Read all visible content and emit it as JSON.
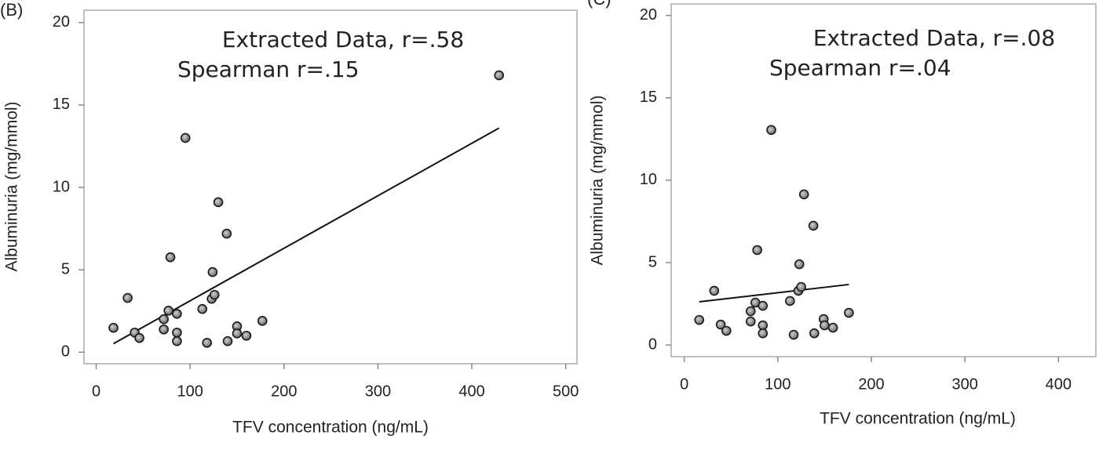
{
  "chart_data": [
    {
      "type": "scatter",
      "panel": "(B)",
      "annotations": [
        "Extracted Data, r=.58",
        "Spearman r=.15"
      ],
      "xlabel": "TFV concentration (ng/mL)",
      "ylabel": "Albuminuria (mg/mmol)",
      "xlim": [
        -13,
        512
      ],
      "ylim": [
        -0.7,
        20.75
      ],
      "xticks": [
        0,
        100,
        200,
        300,
        400,
        500
      ],
      "yticks": [
        0,
        5,
        10,
        15,
        20
      ],
      "x": [
        18.4,
        33.5,
        41,
        46,
        72,
        72,
        77,
        79,
        86,
        86,
        86,
        95,
        113,
        118,
        123,
        124,
        126,
        130,
        139,
        140,
        150,
        150,
        160,
        177,
        429
      ],
      "y": [
        1.48,
        3.29,
        1.19,
        0.86,
        2.0,
        1.38,
        2.52,
        5.76,
        1.19,
        2.33,
        0.67,
        13.0,
        2.62,
        0.57,
        3.24,
        4.86,
        3.48,
        9.1,
        7.19,
        0.67,
        1.57,
        1.14,
        1.0,
        1.9,
        16.8
      ],
      "fit_line": {
        "x": [
          18.4,
          429
        ],
        "y": [
          0.52,
          13.6
        ]
      }
    },
    {
      "type": "scatter",
      "panel": "(C)",
      "annotations": [
        "Extracted Data, r=.08",
        "Spearman r=.04"
      ],
      "xlabel": "TFV concentration (ng/mL)",
      "ylabel": "Albuminuria (mg/mmol)",
      "xlim": [
        -14,
        440
      ],
      "ylim": [
        -0.71,
        20.7
      ],
      "xticks": [
        0,
        100,
        200,
        300,
        400
      ],
      "yticks": [
        0,
        5,
        10,
        15,
        20
      ],
      "x": [
        16,
        32,
        39,
        45,
        71,
        71,
        76,
        78,
        84,
        84,
        84,
        93,
        113,
        117,
        122,
        123,
        125,
        128,
        138,
        139,
        149,
        150,
        159,
        176
      ],
      "y": [
        1.52,
        3.29,
        1.24,
        0.86,
        2.05,
        1.43,
        2.57,
        5.76,
        2.38,
        1.19,
        0.71,
        13.05,
        2.67,
        0.62,
        3.29,
        4.9,
        3.52,
        9.14,
        7.24,
        0.71,
        1.57,
        1.19,
        1.05,
        1.95
      ],
      "fit_line": {
        "x": [
          16,
          176
        ],
        "y": [
          2.62,
          3.67
        ]
      }
    }
  ]
}
